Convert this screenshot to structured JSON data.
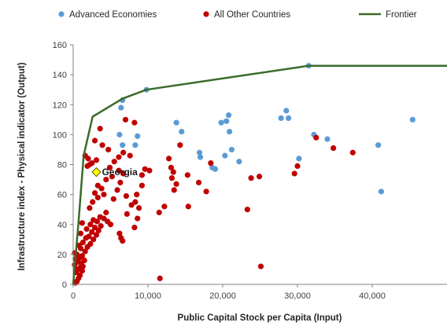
{
  "chart_data": {
    "type": "scatter",
    "title": "",
    "xlabel": "Public Capital Stock per Capita (Input)",
    "ylabel": "Infrastructure index - Physical indicator (Output)",
    "xlim": [
      0,
      50000
    ],
    "ylim": [
      0,
      160
    ],
    "xticks": [
      0,
      10000,
      20000,
      30000,
      40000
    ],
    "xtick_labels": [
      "0",
      "10,000",
      "20,000",
      "30,000",
      "40,000"
    ],
    "yticks": [
      0,
      20,
      40,
      60,
      80,
      100,
      120,
      140,
      160
    ],
    "ytick_labels": [
      "0",
      "20",
      "40",
      "60",
      "80",
      "100",
      "120",
      "140",
      "160"
    ],
    "grid": false,
    "legend_position": "top",
    "colors": {
      "advanced": "#5b9bd5",
      "other": "#c00000",
      "frontier": "#3a6b2a",
      "georgia": "#ffff00",
      "axis": "#808080"
    },
    "legend": {
      "advanced": "Advanced Economies",
      "other": "All Other Countries",
      "frontier": "Frontier"
    },
    "series": [
      {
        "name": "Advanced Economies",
        "kind": "scatter",
        "points": [
          [
            6600,
            123
          ],
          [
            6400,
            118
          ],
          [
            9800,
            130
          ],
          [
            31500,
            146
          ],
          [
            6200,
            100
          ],
          [
            8600,
            99
          ],
          [
            8300,
            93
          ],
          [
            6600,
            93
          ],
          [
            13800,
            108
          ],
          [
            14500,
            102
          ],
          [
            20800,
            113
          ],
          [
            20500,
            109
          ],
          [
            20900,
            102
          ],
          [
            19800,
            108
          ],
          [
            16900,
            88
          ],
          [
            17000,
            85
          ],
          [
            18600,
            78
          ],
          [
            19000,
            77
          ],
          [
            20300,
            86
          ],
          [
            21200,
            90
          ],
          [
            22200,
            82
          ],
          [
            27800,
            111
          ],
          [
            28500,
            116
          ],
          [
            28800,
            111
          ],
          [
            32200,
            100
          ],
          [
            34000,
            97
          ],
          [
            30200,
            84
          ],
          [
            40800,
            93
          ],
          [
            41200,
            62
          ],
          [
            45400,
            110
          ]
        ]
      },
      {
        "name": "All Other Countries",
        "kind": "scatter",
        "points": [
          [
            300,
            1
          ],
          [
            500,
            2
          ],
          [
            700,
            4
          ],
          [
            900,
            6
          ],
          [
            400,
            8
          ],
          [
            1200,
            9
          ],
          [
            600,
            10
          ],
          [
            900,
            11
          ],
          [
            1300,
            12
          ],
          [
            200,
            13
          ],
          [
            1100,
            14
          ],
          [
            700,
            15
          ],
          [
            1500,
            16
          ],
          [
            300,
            17
          ],
          [
            900,
            18
          ],
          [
            1200,
            19
          ],
          [
            500,
            20
          ],
          [
            200,
            21
          ],
          [
            1600,
            22
          ],
          [
            1000,
            24
          ],
          [
            1900,
            25
          ],
          [
            800,
            26
          ],
          [
            2300,
            27
          ],
          [
            1300,
            28
          ],
          [
            2700,
            30
          ],
          [
            1700,
            31
          ],
          [
            2100,
            32
          ],
          [
            3100,
            33
          ],
          [
            1000,
            34
          ],
          [
            2500,
            35
          ],
          [
            3400,
            36
          ],
          [
            1800,
            37
          ],
          [
            2900,
            38
          ],
          [
            3700,
            39
          ],
          [
            2300,
            40
          ],
          [
            1200,
            41
          ],
          [
            3200,
            42
          ],
          [
            2700,
            43
          ],
          [
            3600,
            45
          ],
          [
            4100,
            44
          ],
          [
            4600,
            42
          ],
          [
            5000,
            40
          ],
          [
            4400,
            48
          ],
          [
            2200,
            51
          ],
          [
            2600,
            55
          ],
          [
            3300,
            58
          ],
          [
            4100,
            60
          ],
          [
            2900,
            61
          ],
          [
            3800,
            64
          ],
          [
            3300,
            66
          ],
          [
            5400,
            57
          ],
          [
            5900,
            63
          ],
          [
            6300,
            68
          ],
          [
            6700,
            74
          ],
          [
            5200,
            72
          ],
          [
            4400,
            70
          ],
          [
            6100,
            76
          ],
          [
            4900,
            78
          ],
          [
            5500,
            82
          ],
          [
            2000,
            84
          ],
          [
            1600,
            86
          ],
          [
            1900,
            79
          ],
          [
            2200,
            80
          ],
          [
            2500,
            81
          ],
          [
            3100,
            83
          ],
          [
            6100,
            85
          ],
          [
            6700,
            88
          ],
          [
            7600,
            86
          ],
          [
            4700,
            90
          ],
          [
            3900,
            93
          ],
          [
            2900,
            96
          ],
          [
            3600,
            104
          ],
          [
            7000,
            110
          ],
          [
            8200,
            108
          ],
          [
            6200,
            34
          ],
          [
            6400,
            31
          ],
          [
            6600,
            29
          ],
          [
            7200,
            47
          ],
          [
            7800,
            53
          ],
          [
            7100,
            59
          ],
          [
            8500,
            60
          ],
          [
            8300,
            55
          ],
          [
            8800,
            51
          ],
          [
            8600,
            44
          ],
          [
            8200,
            38
          ],
          [
            9200,
            73
          ],
          [
            9600,
            77
          ],
          [
            9200,
            66
          ],
          [
            10200,
            76
          ],
          [
            11500,
            48
          ],
          [
            12200,
            52
          ],
          [
            13100,
            78
          ],
          [
            13200,
            71
          ],
          [
            13400,
            75
          ],
          [
            12800,
            84
          ],
          [
            13500,
            63
          ],
          [
            13800,
            67
          ],
          [
            14300,
            93
          ],
          [
            15300,
            73
          ],
          [
            15400,
            52
          ],
          [
            16800,
            68
          ],
          [
            17800,
            62
          ],
          [
            18400,
            81
          ],
          [
            23300,
            50
          ],
          [
            23800,
            71
          ],
          [
            24900,
            72
          ],
          [
            25100,
            12
          ],
          [
            29600,
            74
          ],
          [
            30000,
            79
          ],
          [
            32500,
            98
          ],
          [
            34800,
            91
          ],
          [
            37400,
            88
          ],
          [
            11600,
            4
          ]
        ]
      },
      {
        "name": "Frontier",
        "kind": "line",
        "points": [
          [
            0,
            0
          ],
          [
            700,
            41
          ],
          [
            1400,
            86
          ],
          [
            2600,
            112
          ],
          [
            6600,
            124
          ],
          [
            9800,
            130
          ],
          [
            31500,
            146
          ],
          [
            50000,
            146
          ]
        ]
      }
    ],
    "annotations": [
      {
        "label": "Georgia",
        "x": 3100,
        "y": 75
      }
    ]
  }
}
